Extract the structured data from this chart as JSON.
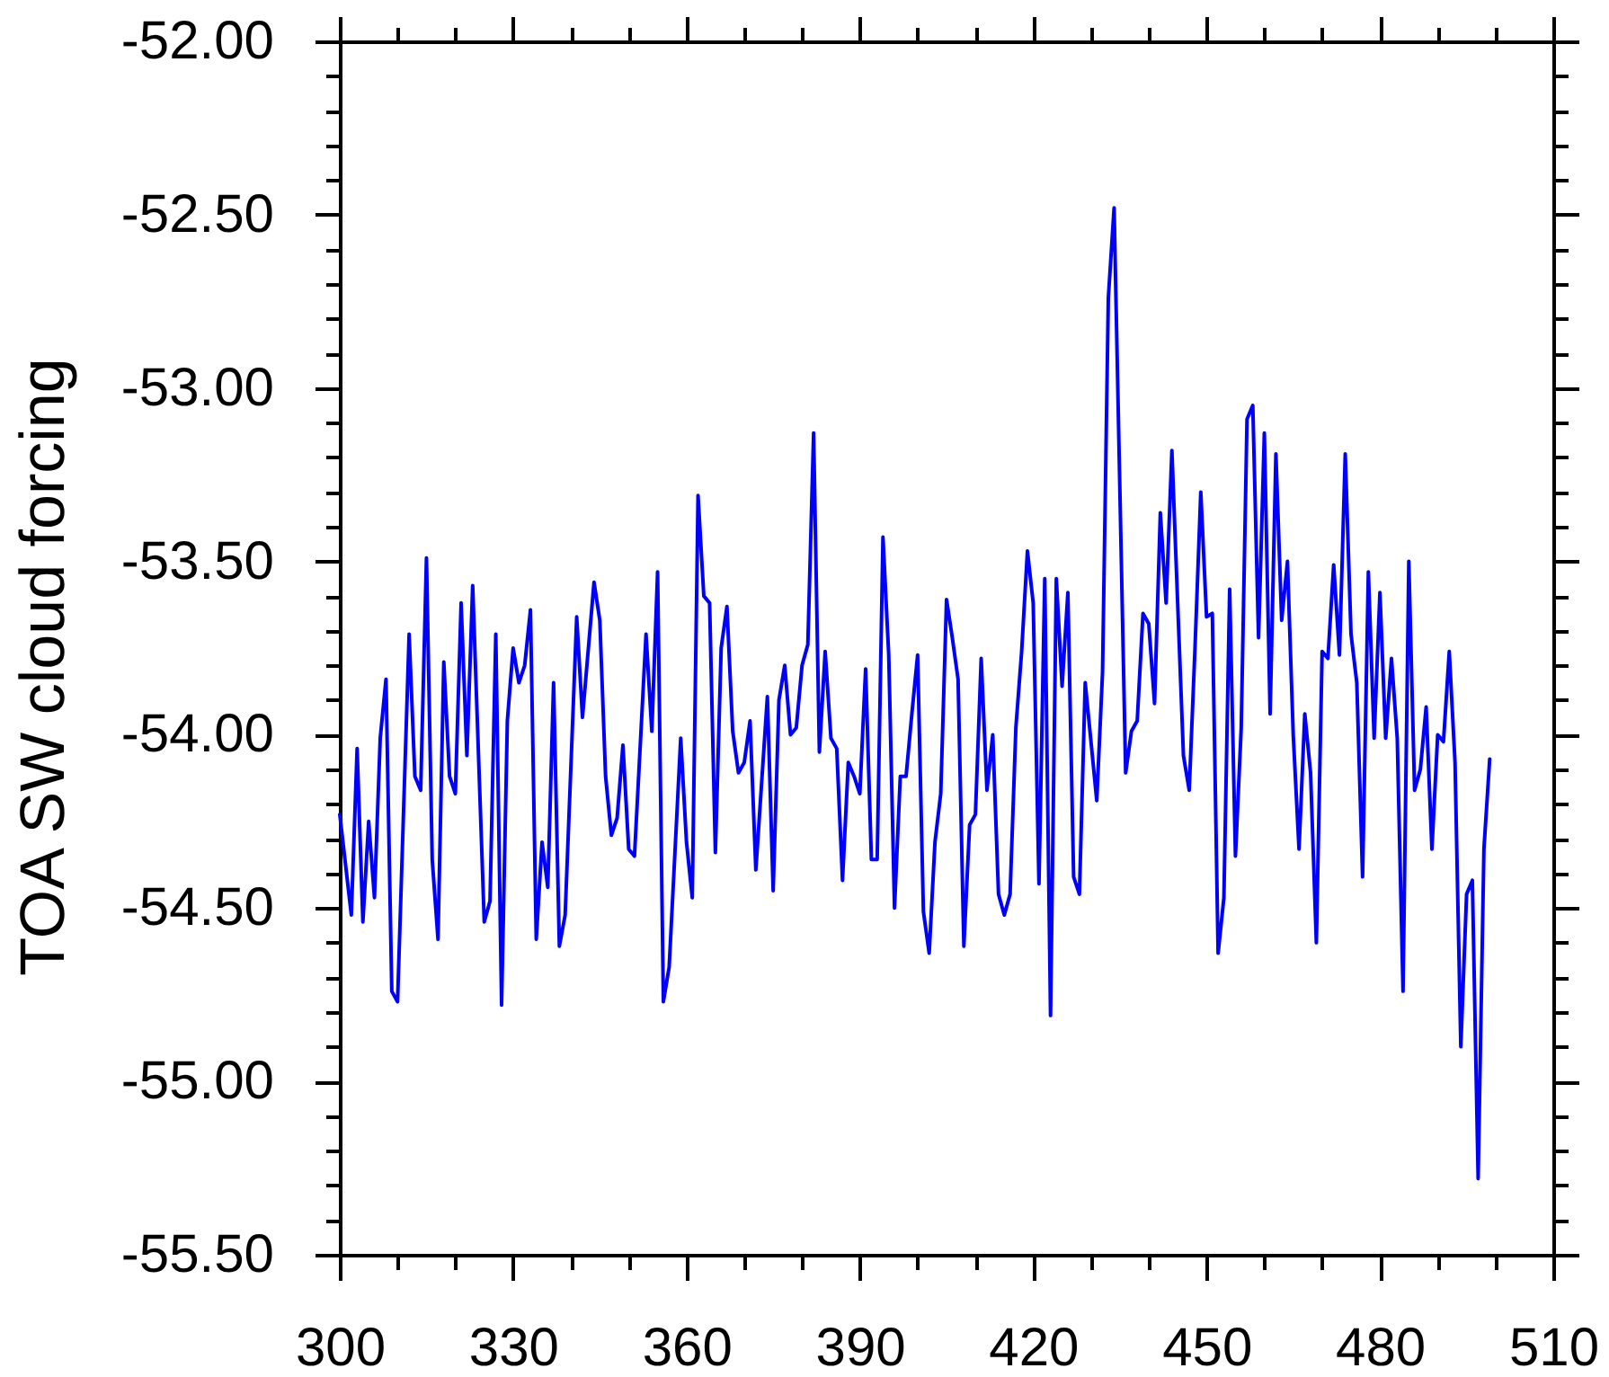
{
  "chart_data": {
    "type": "line",
    "ylabel": "TOA SW cloud forcing",
    "x": [
      300,
      302,
      303,
      304,
      305,
      306,
      307,
      308,
      309,
      310,
      312,
      313,
      314,
      315,
      316,
      317,
      318,
      319,
      320,
      321,
      322,
      323,
      325,
      326,
      327,
      328,
      329,
      330,
      331,
      332,
      333,
      334,
      335,
      336,
      337,
      338,
      339,
      341,
      342,
      344,
      345,
      346,
      347,
      348,
      349,
      350,
      351,
      353,
      354,
      355,
      356,
      357,
      359,
      360,
      361,
      362,
      363,
      364,
      365,
      366,
      367,
      368,
      369,
      370,
      371,
      372,
      373,
      374,
      375,
      376,
      377,
      378,
      379,
      380,
      381,
      382,
      383,
      384,
      385,
      386,
      387,
      388,
      389,
      390,
      391,
      392,
      393,
      394,
      395,
      396,
      397,
      398,
      399,
      400,
      401,
      402,
      403,
      404,
      405,
      406,
      407,
      408,
      409,
      410,
      411,
      412,
      413,
      414,
      415,
      416,
      417,
      418,
      419,
      420,
      421,
      422,
      423,
      424,
      425,
      426,
      427,
      428,
      429,
      430,
      431,
      432,
      433,
      434,
      436,
      437,
      438,
      439,
      440,
      441,
      442,
      443,
      444,
      446,
      447,
      448,
      449,
      450,
      451,
      452,
      453,
      454,
      455,
      456,
      457,
      458,
      459,
      460,
      461,
      462,
      463,
      464,
      465,
      466,
      467,
      468,
      469,
      470,
      471,
      472,
      473,
      474,
      475,
      476,
      477,
      478,
      479,
      480,
      481,
      482,
      483,
      484,
      485,
      486,
      487,
      488,
      489,
      490,
      491,
      492,
      493,
      494,
      495,
      496,
      497,
      498,
      499
    ],
    "series": [
      {
        "color": "#0000ff",
        "values": [
          -54.23,
          -54.52,
          -54.04,
          -54.54,
          -54.25,
          -54.47,
          -54.01,
          -53.84,
          -54.74,
          -54.77,
          -53.71,
          -54.12,
          -54.16,
          -53.49,
          -54.36,
          -54.59,
          -53.79,
          -54.12,
          -54.17,
          -53.62,
          -54.06,
          -53.57,
          -54.54,
          -54.48,
          -53.71,
          -54.78,
          -53.96,
          -53.75,
          -53.85,
          -53.8,
          -53.64,
          -54.59,
          -54.31,
          -54.44,
          -53.85,
          -54.61,
          -54.52,
          -53.66,
          -53.95,
          -53.56,
          -53.67,
          -54.12,
          -54.29,
          -54.24,
          -54.03,
          -54.33,
          -54.35,
          -53.71,
          -53.99,
          -53.53,
          -54.77,
          -54.67,
          -54.01,
          -54.31,
          -54.47,
          -53.31,
          -53.6,
          -53.62,
          -54.34,
          -53.75,
          -53.63,
          -53.99,
          -54.11,
          -54.08,
          -53.96,
          -54.39,
          -54.14,
          -53.89,
          -54.45,
          -53.9,
          -53.8,
          -54.0,
          -53.98,
          -53.8,
          -53.74,
          -53.13,
          -54.05,
          -53.76,
          -54.01,
          -54.04,
          -54.42,
          -54.08,
          -54.12,
          -54.17,
          -53.81,
          -54.36,
          -54.36,
          -53.43,
          -53.77,
          -54.5,
          -54.12,
          -54.12,
          -53.94,
          -53.77,
          -54.51,
          -54.63,
          -54.31,
          -54.17,
          -53.61,
          -53.72,
          -53.84,
          -54.61,
          -54.26,
          -54.23,
          -53.78,
          -54.16,
          -54.0,
          -54.46,
          -54.52,
          -54.46,
          -53.98,
          -53.76,
          -53.47,
          -53.62,
          -54.43,
          -53.55,
          -54.81,
          -53.55,
          -53.86,
          -53.59,
          -54.41,
          -54.46,
          -53.85,
          -54.02,
          -54.19,
          -53.82,
          -52.74,
          -52.48,
          -54.11,
          -53.99,
          -53.96,
          -53.65,
          -53.68,
          -53.91,
          -53.36,
          -53.62,
          -53.18,
          -54.06,
          -54.16,
          -53.75,
          -53.3,
          -53.66,
          -53.65,
          -54.63,
          -54.47,
          -53.58,
          -54.35,
          -53.98,
          -53.09,
          -53.05,
          -53.72,
          -53.13,
          -53.94,
          -53.19,
          -53.67,
          -53.5,
          -54.0,
          -54.33,
          -53.94,
          -54.11,
          -54.6,
          -53.76,
          -53.78,
          -53.51,
          -53.77,
          -53.19,
          -53.71,
          -53.85,
          -54.41,
          -53.53,
          -54.01,
          -53.59,
          -54.01,
          -53.78,
          -54.01,
          -54.74,
          -53.5,
          -54.16,
          -54.1,
          -53.92,
          -54.33,
          -54.0,
          -54.02,
          -53.76,
          -54.08,
          -54.9,
          -54.46,
          -54.42,
          -55.28,
          -54.33,
          -54.07
        ]
      }
    ],
    "xlim": [
      300,
      510
    ],
    "xticks": [
      300,
      {
        "value": 310,
        "label": null
      },
      {
        "value": 320,
        "label": null
      },
      330,
      {
        "value": 340,
        "label": null
      },
      {
        "value": 350,
        "label": null
      },
      360,
      {
        "value": 370,
        "label": null
      },
      {
        "value": 380,
        "label": null
      },
      390,
      {
        "value": 400,
        "label": null
      },
      {
        "value": 410,
        "label": null
      },
      420,
      {
        "value": 430,
        "label": null
      },
      {
        "value": 440,
        "label": null
      },
      450,
      {
        "value": 460,
        "label": null
      },
      {
        "value": 470,
        "label": null
      },
      480,
      {
        "value": 490,
        "label": null
      },
      {
        "value": 500,
        "label": null
      },
      510
    ],
    "ylim": [
      -55.5,
      -52
    ],
    "yticks": [
      {
        "value": -55.5,
        "label": "-55.50"
      },
      {
        "value": -55.4,
        "label": null
      },
      {
        "value": -55.3,
        "label": null
      },
      {
        "value": -55.2,
        "label": null
      },
      {
        "value": -55.1,
        "label": null
      },
      {
        "value": -55,
        "label": "-55.00"
      },
      {
        "value": -54.9,
        "label": null
      },
      {
        "value": -54.8,
        "label": null
      },
      {
        "value": -54.7,
        "label": null
      },
      {
        "value": -54.6,
        "label": null
      },
      {
        "value": -54.5,
        "label": "-54.50"
      },
      {
        "value": -54.4,
        "label": null
      },
      {
        "value": -54.3,
        "label": null
      },
      {
        "value": -54.2,
        "label": null
      },
      {
        "value": -54.1,
        "label": null
      },
      {
        "value": -54,
        "label": "-54.00"
      },
      {
        "value": -53.9,
        "label": null
      },
      {
        "value": -53.8,
        "label": null
      },
      {
        "value": -53.7,
        "label": null
      },
      {
        "value": -53.6,
        "label": null
      },
      {
        "value": -53.5,
        "label": "-53.50"
      },
      {
        "value": -53.4,
        "label": null
      },
      {
        "value": -53.3,
        "label": null
      },
      {
        "value": -53.2,
        "label": null
      },
      {
        "value": -53.1,
        "label": null
      },
      {
        "value": -53,
        "label": "-53.00"
      },
      {
        "value": -52.9,
        "label": null
      },
      {
        "value": -52.8,
        "label": null
      },
      {
        "value": -52.7,
        "label": null
      },
      {
        "value": -52.6,
        "label": null
      },
      {
        "value": -52.5,
        "label": "-52.50"
      },
      {
        "value": -52.4,
        "label": null
      },
      {
        "value": -52.3,
        "label": null
      },
      {
        "value": -52.2,
        "label": null
      },
      {
        "value": -52.1,
        "label": null
      },
      {
        "value": -52,
        "label": "-52.00"
      }
    ]
  }
}
